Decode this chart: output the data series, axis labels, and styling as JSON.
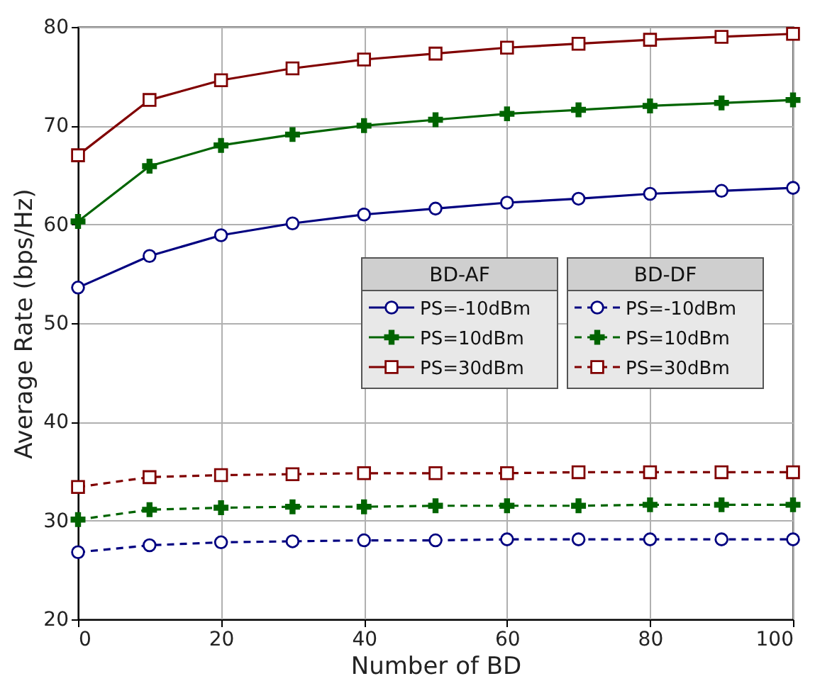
{
  "chart_data": {
    "type": "line",
    "xlabel": "Number of BD",
    "ylabel": "Average Rate (bps/Hz)",
    "x": [
      0,
      10,
      20,
      30,
      40,
      50,
      60,
      70,
      80,
      90,
      100
    ],
    "xlim": [
      0,
      100
    ],
    "xticks": [
      0,
      20,
      40,
      60,
      80,
      100
    ],
    "ylim": [
      20,
      80
    ],
    "yticks": [
      20,
      30,
      40,
      50,
      60,
      70,
      80
    ],
    "grid": true,
    "legend": "right",
    "legend_title": [
      "BD-AF",
      "BD-DF"
    ],
    "series": [
      {
        "name": "PS=-10dBm",
        "color": "#000080",
        "marker": "circle",
        "line_style": "solid",
        "values": [
          53.6,
          56.8,
          58.9,
          60.1,
          61.0,
          61.6,
          62.2,
          62.6,
          63.1,
          63.4,
          63.7
        ]
      },
      {
        "name": "PS=10dBm",
        "color": "#006400",
        "marker": "cross",
        "line_style": "solid",
        "values": [
          60.3,
          65.9,
          68.0,
          69.1,
          70.0,
          70.6,
          71.2,
          71.6,
          72.0,
          72.3,
          72.6
        ]
      },
      {
        "name": "PS=30dBm",
        "color": "#800000",
        "marker": "square",
        "line_style": "solid",
        "values": [
          67.0,
          72.6,
          74.6,
          75.8,
          76.7,
          77.3,
          77.9,
          78.3,
          78.7,
          79.0,
          79.3
        ]
      },
      {
        "name": "PS=-10dBm",
        "color": "#000080",
        "marker": "circle",
        "line_style": "dashed",
        "values": [
          26.8,
          27.5,
          27.8,
          27.9,
          28.0,
          28.0,
          28.1,
          28.1,
          28.1,
          28.1,
          28.1
        ]
      },
      {
        "name": "PS=10dBm",
        "color": "#006400",
        "marker": "cross",
        "line_style": "dashed",
        "values": [
          30.1,
          31.1,
          31.3,
          31.4,
          31.4,
          31.5,
          31.5,
          31.5,
          31.6,
          31.6,
          31.6
        ]
      },
      {
        "name": "PS=30dBm",
        "color": "#800000",
        "marker": "square",
        "line_style": "dashed",
        "values": [
          33.4,
          34.4,
          34.6,
          34.7,
          34.8,
          34.8,
          34.8,
          34.9,
          34.9,
          34.9,
          34.9
        ]
      }
    ]
  }
}
